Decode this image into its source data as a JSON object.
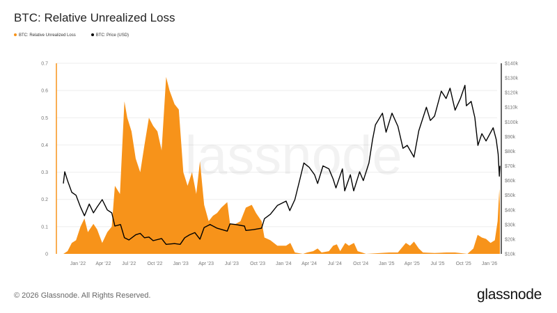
{
  "title": "BTC: Relative Unrealized Loss",
  "footer": "© 2026 Glassnode. All Rights Reserved.",
  "logo": "glassnode",
  "watermark": "glassnode",
  "chart_data": {
    "type": "area+line",
    "title": "BTC: Relative Unrealized Loss",
    "legend_position": "top-left",
    "grid": true,
    "series": [
      {
        "name": "BTC: Relative Unrealized Loss",
        "color": "#f7931a",
        "axis": "left",
        "type": "area",
        "points": [
          [
            "2021-11-10",
            0
          ],
          [
            "2021-11-25",
            0.01
          ],
          [
            "2021-12-10",
            0.04
          ],
          [
            "2021-12-25",
            0.05
          ],
          [
            "2022-01-10",
            0.1
          ],
          [
            "2022-01-24",
            0.13
          ],
          [
            "2022-02-05",
            0.08
          ],
          [
            "2022-02-25",
            0.11
          ],
          [
            "2022-03-10",
            0.09
          ],
          [
            "2022-03-28",
            0.04
          ],
          [
            "2022-04-15",
            0.08
          ],
          [
            "2022-05-01",
            0.1
          ],
          [
            "2022-05-12",
            0.25
          ],
          [
            "2022-05-30",
            0.22
          ],
          [
            "2022-06-15",
            0.56
          ],
          [
            "2022-06-25",
            0.5
          ],
          [
            "2022-07-10",
            0.45
          ],
          [
            "2022-07-25",
            0.35
          ],
          [
            "2022-08-10",
            0.3
          ],
          [
            "2022-08-25",
            0.4
          ],
          [
            "2022-09-10",
            0.5
          ],
          [
            "2022-09-25",
            0.47
          ],
          [
            "2022-10-10",
            0.45
          ],
          [
            "2022-10-25",
            0.38
          ],
          [
            "2022-11-10",
            0.65
          ],
          [
            "2022-11-22",
            0.6
          ],
          [
            "2022-12-10",
            0.55
          ],
          [
            "2022-12-25",
            0.53
          ],
          [
            "2023-01-10",
            0.3
          ],
          [
            "2023-01-25",
            0.25
          ],
          [
            "2023-02-10",
            0.3
          ],
          [
            "2023-02-25",
            0.22
          ],
          [
            "2023-03-10",
            0.34
          ],
          [
            "2023-03-25",
            0.18
          ],
          [
            "2023-04-10",
            0.12
          ],
          [
            "2023-04-25",
            0.14
          ],
          [
            "2023-05-10",
            0.15
          ],
          [
            "2023-05-25",
            0.17
          ],
          [
            "2023-06-15",
            0.19
          ],
          [
            "2023-06-25",
            0.11
          ],
          [
            "2023-07-15",
            0.11
          ],
          [
            "2023-08-01",
            0.12
          ],
          [
            "2023-08-20",
            0.17
          ],
          [
            "2023-09-10",
            0.18
          ],
          [
            "2023-09-25",
            0.15
          ],
          [
            "2023-10-15",
            0.12
          ],
          [
            "2023-10-25",
            0.06
          ],
          [
            "2023-11-15",
            0.05
          ],
          [
            "2023-12-10",
            0.03
          ],
          [
            "2024-01-10",
            0.03
          ],
          [
            "2024-01-25",
            0.04
          ],
          [
            "2024-02-10",
            0.005
          ],
          [
            "2024-03-10",
            0
          ],
          [
            "2024-03-25",
            0.005
          ],
          [
            "2024-04-15",
            0.01
          ],
          [
            "2024-05-01",
            0.02
          ],
          [
            "2024-05-15",
            0.005
          ],
          [
            "2024-06-10",
            0.01
          ],
          [
            "2024-06-25",
            0.03
          ],
          [
            "2024-07-08",
            0.035
          ],
          [
            "2024-07-20",
            0.01
          ],
          [
            "2024-08-07",
            0.04
          ],
          [
            "2024-08-20",
            0.03
          ],
          [
            "2024-09-07",
            0.04
          ],
          [
            "2024-09-20",
            0.01
          ],
          [
            "2024-10-05",
            0.005
          ],
          [
            "2024-10-20",
            0
          ],
          [
            "2025-01-10",
            0.005
          ],
          [
            "2025-02-10",
            0.005
          ],
          [
            "2025-03-10",
            0.04
          ],
          [
            "2025-03-25",
            0.03
          ],
          [
            "2025-04-08",
            0.045
          ],
          [
            "2025-04-25",
            0.02
          ],
          [
            "2025-05-10",
            0.005
          ],
          [
            "2025-06-20",
            0.003
          ],
          [
            "2025-08-01",
            0.005
          ],
          [
            "2025-09-01",
            0.005
          ],
          [
            "2025-10-15",
            0
          ],
          [
            "2025-11-05",
            0.02
          ],
          [
            "2025-11-20",
            0.07
          ],
          [
            "2025-12-05",
            0.06
          ],
          [
            "2025-12-20",
            0.055
          ],
          [
            "2026-01-05",
            0.04
          ],
          [
            "2026-01-20",
            0.05
          ],
          [
            "2026-01-30",
            0.12
          ],
          [
            "2026-02-05",
            0.24
          ],
          [
            "2026-02-07",
            0.18
          ]
        ]
      },
      {
        "name": "BTC: Price (USD)",
        "color": "#000000",
        "axis": "right",
        "type": "line",
        "points": [
          [
            "2021-11-10",
            58000
          ],
          [
            "2021-11-15",
            66000
          ],
          [
            "2021-11-25",
            60000
          ],
          [
            "2021-12-10",
            52000
          ],
          [
            "2021-12-25",
            50000
          ],
          [
            "2022-01-10",
            42000
          ],
          [
            "2022-01-24",
            36000
          ],
          [
            "2022-02-10",
            44000
          ],
          [
            "2022-02-25",
            38000
          ],
          [
            "2022-03-10",
            42000
          ],
          [
            "2022-03-28",
            47000
          ],
          [
            "2022-04-15",
            40000
          ],
          [
            "2022-05-01",
            38000
          ],
          [
            "2022-05-12",
            29000
          ],
          [
            "2022-06-01",
            30000
          ],
          [
            "2022-06-15",
            21000
          ],
          [
            "2022-07-01",
            19500
          ],
          [
            "2022-07-25",
            23000
          ],
          [
            "2022-08-10",
            24000
          ],
          [
            "2022-08-25",
            21000
          ],
          [
            "2022-09-10",
            21500
          ],
          [
            "2022-09-25",
            19000
          ],
          [
            "2022-10-25",
            20500
          ],
          [
            "2022-11-10",
            16500
          ],
          [
            "2022-12-10",
            17000
          ],
          [
            "2022-12-30",
            16500
          ],
          [
            "2023-01-15",
            21000
          ],
          [
            "2023-02-01",
            23000
          ],
          [
            "2023-02-20",
            24500
          ],
          [
            "2023-03-10",
            20000
          ],
          [
            "2023-03-25",
            28000
          ],
          [
            "2023-04-15",
            30000
          ],
          [
            "2023-05-10",
            27500
          ],
          [
            "2023-06-15",
            25500
          ],
          [
            "2023-06-25",
            30500
          ],
          [
            "2023-07-15",
            30000
          ],
          [
            "2023-08-15",
            29000
          ],
          [
            "2023-08-20",
            26000
          ],
          [
            "2023-09-15",
            26500
          ],
          [
            "2023-10-15",
            27500
          ],
          [
            "2023-10-25",
            34000
          ],
          [
            "2023-11-15",
            37000
          ],
          [
            "2023-12-10",
            43000
          ],
          [
            "2024-01-10",
            46000
          ],
          [
            "2024-01-23",
            39500
          ],
          [
            "2024-02-10",
            47000
          ],
          [
            "2024-02-28",
            61000
          ],
          [
            "2024-03-13",
            72000
          ],
          [
            "2024-04-01",
            69000
          ],
          [
            "2024-04-20",
            64000
          ],
          [
            "2024-05-01",
            58000
          ],
          [
            "2024-05-20",
            70000
          ],
          [
            "2024-06-10",
            68000
          ],
          [
            "2024-06-25",
            61000
          ],
          [
            "2024-07-05",
            55000
          ],
          [
            "2024-07-28",
            68000
          ],
          [
            "2024-08-05",
            53000
          ],
          [
            "2024-08-25",
            64000
          ],
          [
            "2024-09-06",
            53000
          ],
          [
            "2024-09-27",
            66000
          ],
          [
            "2024-10-10",
            60000
          ],
          [
            "2024-10-30",
            72000
          ],
          [
            "2024-11-12",
            88000
          ],
          [
            "2024-11-22",
            98000
          ],
          [
            "2024-12-17",
            106000
          ],
          [
            "2024-12-30",
            93000
          ],
          [
            "2025-01-20",
            106000
          ],
          [
            "2025-02-10",
            97000
          ],
          [
            "2025-02-28",
            82000
          ],
          [
            "2025-03-15",
            84000
          ],
          [
            "2025-04-08",
            76000
          ],
          [
            "2025-04-25",
            94000
          ],
          [
            "2025-05-22",
            110000
          ],
          [
            "2025-06-05",
            101000
          ],
          [
            "2025-06-20",
            104000
          ],
          [
            "2025-07-14",
            121000
          ],
          [
            "2025-07-31",
            116000
          ],
          [
            "2025-08-14",
            123000
          ],
          [
            "2025-09-01",
            108000
          ],
          [
            "2025-09-20",
            116000
          ],
          [
            "2025-10-06",
            125000
          ],
          [
            "2025-10-11",
            111000
          ],
          [
            "2025-10-28",
            114000
          ],
          [
            "2025-11-10",
            103000
          ],
          [
            "2025-11-21",
            84000
          ],
          [
            "2025-12-05",
            92000
          ],
          [
            "2025-12-20",
            87000
          ],
          [
            "2026-01-14",
            96000
          ],
          [
            "2026-01-25",
            88000
          ],
          [
            "2026-02-01",
            78000
          ],
          [
            "2026-02-05",
            63000
          ],
          [
            "2026-02-07",
            70000
          ]
        ]
      }
    ],
    "y_left": {
      "range": [
        0,
        0.7
      ],
      "ticks": [
        "0",
        "0.1",
        "0.2",
        "0.3",
        "0.4",
        "0.5",
        "0.6",
        "0.7"
      ]
    },
    "y_right": {
      "range": [
        10000,
        140000
      ],
      "scale": "linear",
      "ticks": [
        "$10k",
        "$20k",
        "$30k",
        "$40k",
        "$50k",
        "$60k",
        "$70k",
        "$80k",
        "$90k",
        "$100k",
        "$110k",
        "$120k",
        "$130k",
        "$140k"
      ]
    },
    "x": {
      "range": [
        "2021-11-01",
        "2026-02-08"
      ],
      "ticks": [
        [
          "2022-01-01",
          "Jan '22"
        ],
        [
          "2022-04-01",
          "Apr '22"
        ],
        [
          "2022-07-01",
          "Jul '22"
        ],
        [
          "2022-10-01",
          "Oct '22"
        ],
        [
          "2023-01-01",
          "Jan '23"
        ],
        [
          "2023-04-01",
          "Apr '23"
        ],
        [
          "2023-07-01",
          "Jul '23"
        ],
        [
          "2023-10-01",
          "Oct '23"
        ],
        [
          "2024-01-01",
          "Jan '24"
        ],
        [
          "2024-04-01",
          "Apr '24"
        ],
        [
          "2024-07-01",
          "Jul '24"
        ],
        [
          "2024-10-01",
          "Oct '24"
        ],
        [
          "2025-01-01",
          "Jan '25"
        ],
        [
          "2025-04-01",
          "Apr '25"
        ],
        [
          "2025-07-01",
          "Jul '25"
        ],
        [
          "2025-10-01",
          "Oct '25"
        ],
        [
          "2026-01-01",
          "Jan '26"
        ]
      ]
    }
  }
}
